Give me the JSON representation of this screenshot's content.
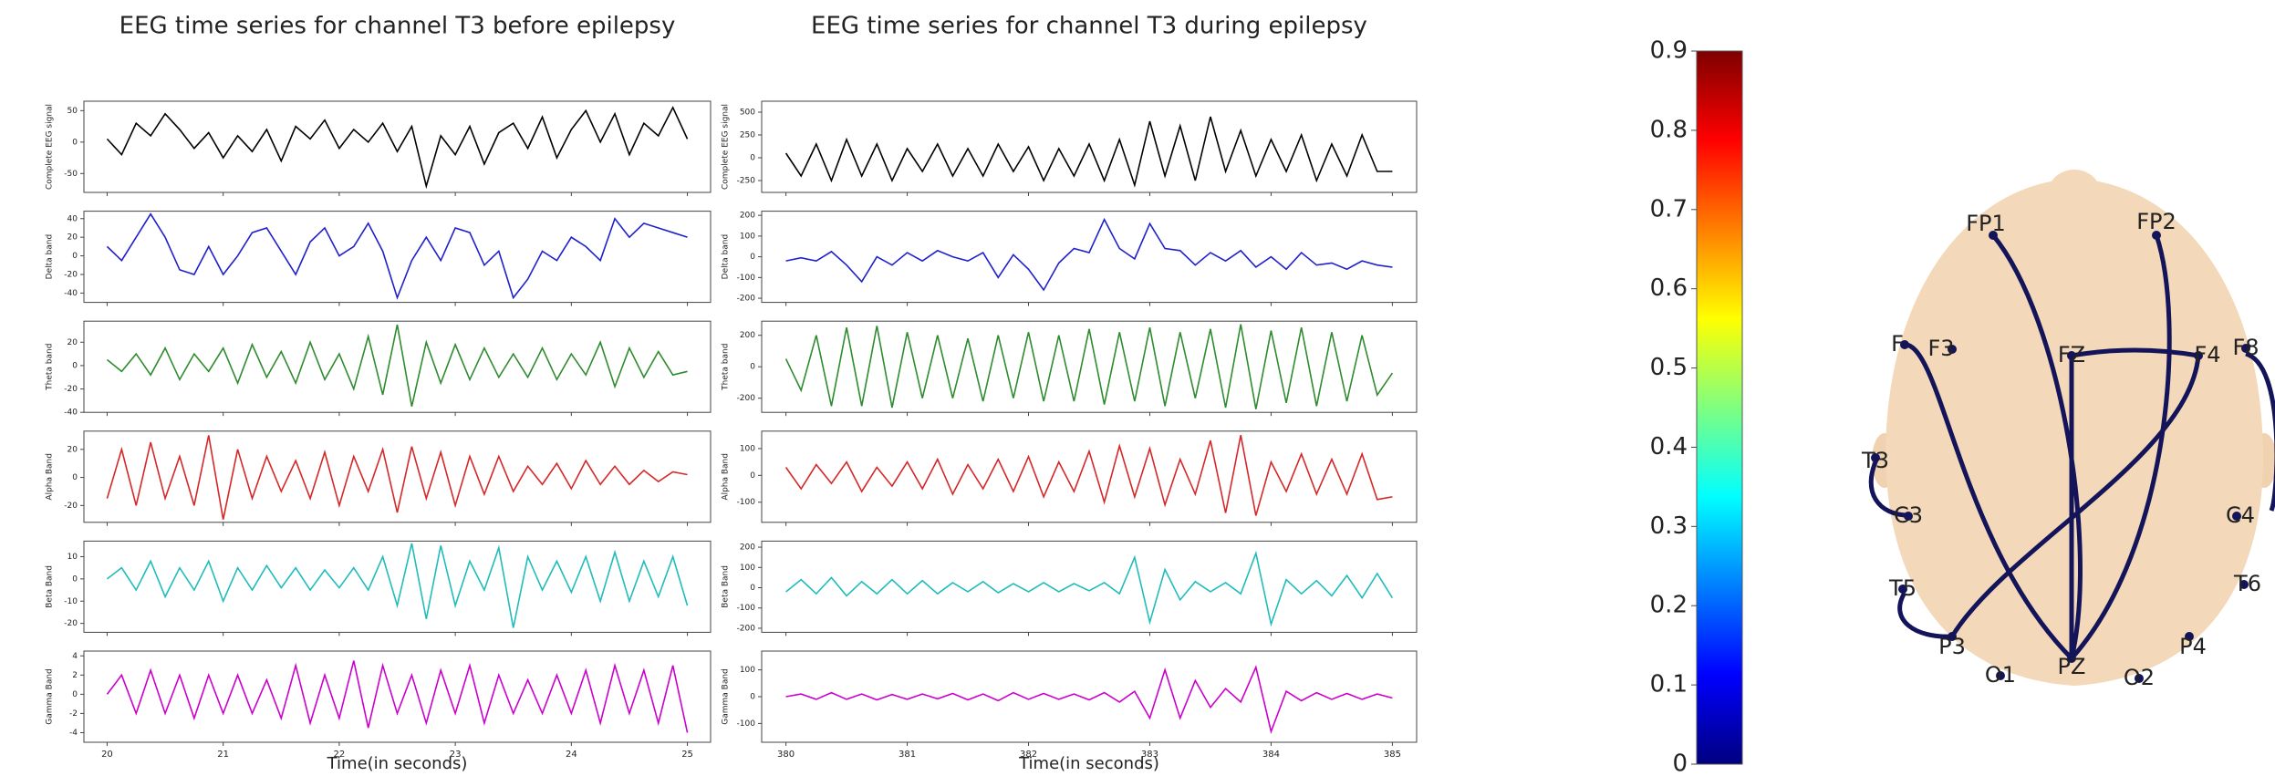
{
  "chart_data": [
    {
      "type": "line",
      "title": "EEG time series for channel T3 before epilepsy",
      "xlabel": "Time(in seconds)",
      "x": [
        20,
        20.125,
        20.25,
        20.375,
        20.5,
        20.625,
        20.75,
        20.875,
        21,
        21.125,
        21.25,
        21.375,
        21.5,
        21.625,
        21.75,
        21.875,
        22,
        22.125,
        22.25,
        22.375,
        22.5,
        22.625,
        22.75,
        22.875,
        23,
        23.125,
        23.25,
        23.375,
        23.5,
        23.625,
        23.75,
        23.875,
        24,
        24.125,
        24.25,
        24.375,
        24.5,
        24.625,
        24.75,
        24.875,
        25
      ],
      "xlim": [
        19.8,
        25.2
      ],
      "xticks": [
        20,
        21,
        22,
        23,
        24,
        25
      ],
      "panels": [
        {
          "ylabel": "Complete EEG signal",
          "color": "#000000",
          "ylim": [
            -80,
            65
          ],
          "yticks": [
            -50,
            0,
            50
          ],
          "values": [
            5,
            -20,
            30,
            10,
            45,
            20,
            -10,
            15,
            -25,
            10,
            -15,
            20,
            -30,
            25,
            5,
            35,
            -10,
            20,
            0,
            30,
            -15,
            25,
            -70,
            10,
            -20,
            25,
            -35,
            15,
            30,
            -10,
            40,
            -25,
            20,
            50,
            0,
            45,
            -20,
            30,
            10,
            55,
            5
          ]
        },
        {
          "ylabel": "Delta band",
          "color": "#2020cc",
          "ylim": [
            -50,
            48
          ],
          "yticks": [
            -40,
            -20,
            0,
            20,
            40
          ],
          "values": [
            10,
            -5,
            20,
            45,
            20,
            -15,
            -20,
            10,
            -20,
            0,
            25,
            30,
            5,
            -20,
            15,
            30,
            0,
            10,
            35,
            5,
            -45,
            -5,
            20,
            -5,
            30,
            25,
            -10,
            5,
            -45,
            -25,
            5,
            -5,
            20,
            10,
            -5,
            40,
            20,
            35,
            30,
            25,
            20
          ]
        },
        {
          "ylabel": "Theta band",
          "color": "#2e8b2e",
          "ylim": [
            -40,
            38
          ],
          "yticks": [
            -40,
            -20,
            0,
            20
          ],
          "values": [
            5,
            -5,
            10,
            -8,
            15,
            -12,
            10,
            -5,
            15,
            -15,
            18,
            -10,
            12,
            -15,
            20,
            -12,
            10,
            -20,
            25,
            -25,
            35,
            -35,
            20,
            -15,
            18,
            -12,
            15,
            -10,
            10,
            -10,
            15,
            -12,
            10,
            -8,
            20,
            -18,
            15,
            -10,
            12,
            -8,
            -5
          ]
        },
        {
          "ylabel": "Alpha Band",
          "color": "#d62728",
          "ylim": [
            -32,
            33
          ],
          "yticks": [
            -20,
            0,
            20
          ],
          "values": [
            -15,
            20,
            -20,
            25,
            -15,
            15,
            -20,
            30,
            -30,
            20,
            -15,
            15,
            -10,
            12,
            -15,
            18,
            -20,
            15,
            -10,
            20,
            -25,
            22,
            -15,
            18,
            -20,
            15,
            -12,
            15,
            -10,
            8,
            -5,
            10,
            -8,
            12,
            -5,
            8,
            -5,
            5,
            -3,
            4,
            2
          ]
        },
        {
          "ylabel": "Beta Band",
          "color": "#20bcbc",
          "ylim": [
            -24,
            17
          ],
          "yticks": [
            -20,
            -10,
            0,
            10
          ],
          "values": [
            0,
            5,
            -5,
            8,
            -8,
            5,
            -5,
            8,
            -10,
            5,
            -5,
            6,
            -4,
            5,
            -5,
            4,
            -4,
            5,
            -5,
            10,
            -12,
            16,
            -18,
            15,
            -12,
            8,
            -5,
            14,
            -22,
            10,
            -5,
            8,
            -6,
            10,
            -10,
            12,
            -10,
            8,
            -8,
            10,
            -12
          ]
        },
        {
          "ylabel": "Gamma Band",
          "color": "#cc00cc",
          "ylim": [
            -5,
            4.5
          ],
          "yticks": [
            -4,
            -2,
            0,
            2,
            4
          ],
          "values": [
            0,
            2,
            -2,
            2.5,
            -2,
            2,
            -2.5,
            2,
            -2,
            2,
            -2,
            1.5,
            -2.5,
            3,
            -3,
            2,
            -2.5,
            3.5,
            -3.5,
            3,
            -2,
            2,
            -3,
            2.5,
            -2,
            3,
            -3,
            2,
            -2,
            1.5,
            -2,
            2,
            -2,
            2.5,
            -3,
            3,
            -2,
            2.5,
            -3,
            3,
            -4
          ]
        }
      ]
    },
    {
      "type": "line",
      "title": "EEG time series for channel T3 during epilepsy",
      "xlabel": "Time(in seconds)",
      "x": [
        380,
        380.125,
        380.25,
        380.375,
        380.5,
        380.625,
        380.75,
        380.875,
        381,
        381.125,
        381.25,
        381.375,
        381.5,
        381.625,
        381.75,
        381.875,
        382,
        382.125,
        382.25,
        382.375,
        382.5,
        382.625,
        382.75,
        382.875,
        383,
        383.125,
        383.25,
        383.375,
        383.5,
        383.625,
        383.75,
        383.875,
        384,
        384.125,
        384.25,
        384.375,
        384.5,
        384.625,
        384.75,
        384.875,
        385
      ],
      "xlim": [
        379.8,
        385.2
      ],
      "xticks": [
        380,
        381,
        382,
        383,
        384,
        385
      ],
      "panels": [
        {
          "ylabel": "Complete EEG signal",
          "color": "#000000",
          "ylim": [
            -380,
            620
          ],
          "yticks": [
            -250,
            0,
            250,
            500
          ],
          "values": [
            50,
            -200,
            150,
            -250,
            200,
            -200,
            150,
            -250,
            100,
            -150,
            150,
            -200,
            100,
            -200,
            150,
            -150,
            120,
            -250,
            100,
            -200,
            150,
            -250,
            200,
            -300,
            400,
            -200,
            350,
            -250,
            450,
            -150,
            300,
            -200,
            200,
            -150,
            250,
            -250,
            150,
            -200,
            250,
            -150,
            -150
          ]
        },
        {
          "ylabel": "Delta band",
          "color": "#2020cc",
          "ylim": [
            -220,
            220
          ],
          "yticks": [
            -200,
            -100,
            0,
            100,
            200
          ],
          "values": [
            -20,
            -5,
            -20,
            25,
            -40,
            -120,
            0,
            -40,
            20,
            -20,
            30,
            0,
            -20,
            20,
            -100,
            10,
            -60,
            -160,
            -30,
            40,
            20,
            180,
            40,
            -10,
            160,
            40,
            30,
            -40,
            20,
            -20,
            30,
            -50,
            0,
            -60,
            20,
            -40,
            -30,
            -60,
            -20,
            -40,
            -50
          ]
        },
        {
          "ylabel": "Theta band",
          "color": "#2e8b2e",
          "ylim": [
            -290,
            290
          ],
          "yticks": [
            -200,
            0,
            200
          ],
          "values": [
            50,
            -150,
            200,
            -250,
            250,
            -250,
            260,
            -260,
            220,
            -200,
            200,
            -200,
            180,
            -220,
            200,
            -200,
            220,
            -220,
            200,
            -220,
            240,
            -240,
            220,
            -220,
            250,
            -250,
            220,
            -200,
            240,
            -260,
            270,
            -270,
            230,
            -230,
            250,
            -250,
            220,
            -220,
            200,
            -180,
            -40
          ]
        },
        {
          "ylabel": "Alpha Band",
          "color": "#d62728",
          "ylim": [
            -175,
            165
          ],
          "yticks": [
            -100,
            0,
            100
          ],
          "values": [
            30,
            -50,
            40,
            -30,
            50,
            -60,
            30,
            -40,
            50,
            -50,
            60,
            -70,
            40,
            -50,
            60,
            -60,
            70,
            -80,
            50,
            -60,
            90,
            -100,
            110,
            -80,
            100,
            -110,
            60,
            -70,
            130,
            -140,
            150,
            -150,
            50,
            -60,
            80,
            -70,
            60,
            -70,
            80,
            -90,
            -80
          ]
        },
        {
          "ylabel": "Beta Band",
          "color": "#20bcbc",
          "ylim": [
            -220,
            230
          ],
          "yticks": [
            -200,
            -100,
            0,
            100,
            200
          ],
          "values": [
            -20,
            40,
            -30,
            50,
            -40,
            30,
            -30,
            40,
            -30,
            35,
            -30,
            25,
            -20,
            30,
            -25,
            20,
            -20,
            25,
            -20,
            20,
            -15,
            25,
            -30,
            150,
            -170,
            90,
            -60,
            30,
            -20,
            25,
            -30,
            170,
            -180,
            40,
            -30,
            35,
            -40,
            60,
            -50,
            70,
            -50
          ]
        },
        {
          "ylabel": "Gamma Band",
          "color": "#cc00cc",
          "ylim": [
            -170,
            170
          ],
          "yticks": [
            -100,
            0,
            100
          ],
          "values": [
            0,
            10,
            -10,
            15,
            -10,
            10,
            -12,
            8,
            -10,
            10,
            -8,
            12,
            -12,
            10,
            -15,
            15,
            -10,
            12,
            -10,
            10,
            -12,
            15,
            -20,
            20,
            -80,
            100,
            -80,
            60,
            -40,
            30,
            -20,
            110,
            -130,
            20,
            -15,
            15,
            -10,
            12,
            -10,
            10,
            -5
          ]
        }
      ]
    },
    {
      "type": "colorbar",
      "ylim": [
        0,
        0.9
      ],
      "yticks": [
        0,
        0.1,
        0.2,
        0.3,
        0.4,
        0.5,
        0.6,
        0.7,
        0.8,
        0.9
      ],
      "colors": [
        "#00007f",
        "#0000ff",
        "#007fff",
        "#00ffff",
        "#7fff7f",
        "#ffff00",
        "#ff7f00",
        "#ff0000",
        "#7f0000"
      ]
    }
  ],
  "head": {
    "electrodes": [
      "FP1",
      "FP2",
      "F",
      "F3",
      "FZ",
      "F4",
      "F8",
      "T3",
      "C3",
      "C4",
      "T5",
      "T6",
      "P3",
      "P4",
      "O1",
      "PZ",
      "O2"
    ]
  }
}
